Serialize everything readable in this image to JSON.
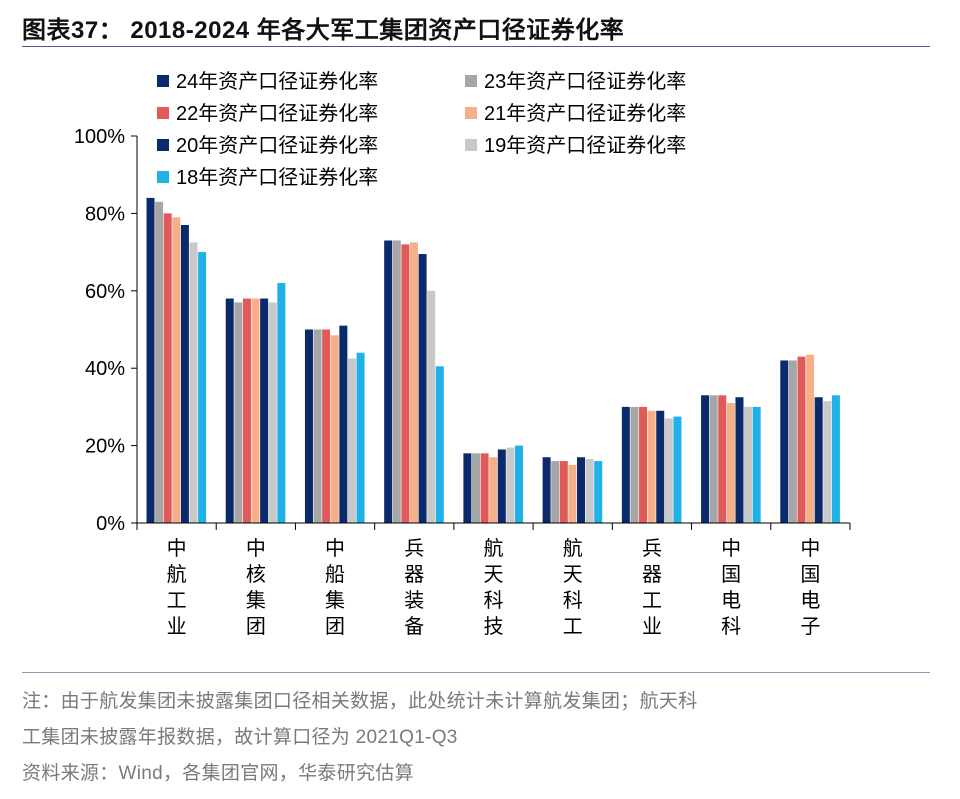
{
  "header": {
    "title": "图表37：  2018-2024 年各大军工集团资产口径证券化率"
  },
  "footer": {
    "note_line1": "注：由于航发集团未披露集团口径相关数据，此处统计未计算航发集团；航天科",
    "note_line2": "工集团未披露年报数据，故计算口径为 2021Q1-Q3",
    "source": "资料来源：Wind，各集团官网，华泰研究估算"
  },
  "chart_data": {
    "type": "bar",
    "title": "",
    "xlabel": "",
    "ylabel": "",
    "ylim": [
      0,
      100
    ],
    "yticks": [
      "0%",
      "20%",
      "40%",
      "60%",
      "80%",
      "100%"
    ],
    "ytick_values": [
      0,
      20,
      40,
      60,
      80,
      100
    ],
    "legend_position": "top-left",
    "categories": [
      "中航工业",
      "中核集团",
      "中船集团",
      "兵器装备",
      "航天科技",
      "航天科工",
      "兵器工业",
      "中国电科",
      "中国电子"
    ],
    "series": [
      {
        "name": "24年资产口径证券化率",
        "color": "#0b2a6b",
        "values": [
          84,
          58,
          50,
          73,
          18,
          17,
          30,
          33,
          42
        ]
      },
      {
        "name": "23年资产口径证券化率",
        "color": "#a6a6a6",
        "values": [
          83,
          57,
          50,
          73,
          18,
          16,
          30,
          33,
          42
        ]
      },
      {
        "name": "22年资产口径证券化率",
        "color": "#e05a5a",
        "values": [
          80,
          58,
          50,
          72,
          18,
          16,
          30,
          33,
          43
        ]
      },
      {
        "name": "21年资产口径证券化率",
        "color": "#f5b089",
        "values": [
          79,
          58,
          48.5,
          72.5,
          17,
          15,
          29,
          31,
          43.5
        ]
      },
      {
        "name": "20年资产口径证券化率",
        "color": "#0b2a6b",
        "values": [
          77,
          58,
          51,
          69.5,
          19,
          17,
          29,
          32.5,
          32.5
        ]
      },
      {
        "name": "19年资产口径证券化率",
        "color": "#c8c8c8",
        "values": [
          72.5,
          57,
          42.5,
          60,
          19.5,
          16.5,
          27,
          30,
          31.5
        ]
      },
      {
        "name": "18年资产口径证券化率",
        "color": "#1fb1e8",
        "values": [
          70,
          62,
          44,
          40.5,
          20,
          16,
          27.5,
          30,
          33
        ]
      }
    ]
  }
}
